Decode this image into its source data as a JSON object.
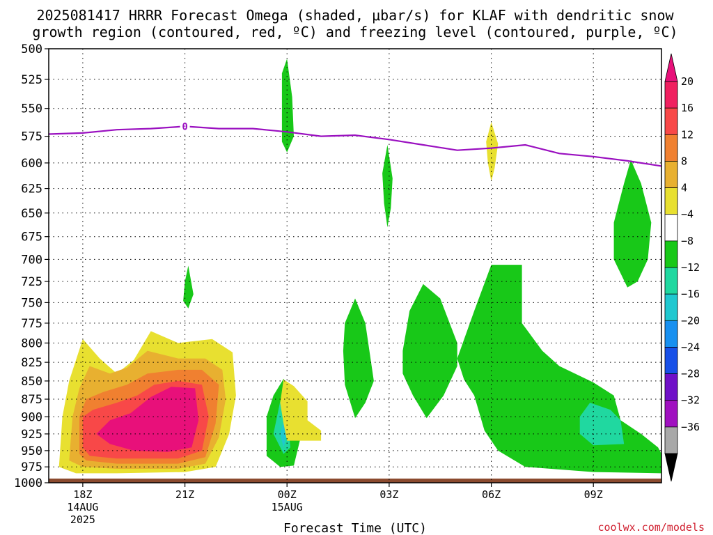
{
  "chart_data": {
    "type": "heatmap",
    "title_line1": "2025081417 HRRR Forecast Omega (shaded, μbar/s) for KLAF with dendritic snow",
    "title_line2": "growth region (contoured, red, ºC) and freezing level (contoured, purple, ºC)",
    "xlabel": "Forecast Time (UTC)",
    "credit": "coolwx.com/models",
    "x_ticks": [
      {
        "label": "18Z",
        "sub1": "14AUG",
        "sub2": "2025",
        "hour": 1
      },
      {
        "label": "21Z",
        "sub1": "",
        "sub2": "",
        "hour": 4
      },
      {
        "label": "00Z",
        "sub1": "15AUG",
        "sub2": "",
        "hour": 7
      },
      {
        "label": "03Z",
        "sub1": "",
        "sub2": "",
        "hour": 10
      },
      {
        "label": "06Z",
        "sub1": "",
        "sub2": "",
        "hour": 13
      },
      {
        "label": "09Z",
        "sub1": "",
        "sub2": "",
        "hour": 16
      }
    ],
    "xlim": [
      0,
      18
    ],
    "y_levels": [
      500,
      525,
      550,
      575,
      600,
      625,
      650,
      675,
      700,
      725,
      750,
      775,
      800,
      825,
      850,
      875,
      900,
      925,
      950,
      975,
      1000
    ],
    "ylim": [
      500,
      1000
    ],
    "y_scale": "log-pressure",
    "grid": true,
    "colorbar": {
      "levels": [
        "20",
        "16",
        "12",
        "8",
        "4",
        "−4",
        "−8",
        "−12",
        "−16",
        "−20",
        "−24",
        "−28",
        "−32",
        "−36"
      ],
      "colors": [
        "#f02060",
        "#f84848",
        "#f08030",
        "#e8b030",
        "#e8e030",
        "#ffffff",
        "#18c818",
        "#20d8a0",
        "#20c8d0",
        "#1890f0",
        "#1850e8",
        "#7010c8",
        "#a010c0",
        "#a8a8a8"
      ],
      "top_color": "#e8107a",
      "bottom_color": "#000000"
    },
    "freezing_level": {
      "label": "0",
      "points": [
        [
          0,
          573
        ],
        [
          1,
          572
        ],
        [
          2,
          569
        ],
        [
          3,
          568
        ],
        [
          4,
          566
        ],
        [
          5,
          568
        ],
        [
          6,
          568
        ],
        [
          7,
          571
        ],
        [
          8,
          575
        ],
        [
          9,
          574
        ],
        [
          10,
          578
        ],
        [
          11,
          583
        ],
        [
          12,
          588
        ],
        [
          13,
          586
        ],
        [
          14,
          583
        ],
        [
          15,
          591
        ],
        [
          16,
          594
        ],
        [
          17,
          598
        ],
        [
          18,
          603
        ]
      ]
    },
    "omega_regions": [
      {
        "value": 6,
        "color": "#e8e030",
        "points": [
          [
            0.3,
            975
          ],
          [
            0.4,
            900
          ],
          [
            0.6,
            850
          ],
          [
            1.0,
            795
          ],
          [
            1.5,
            820
          ],
          [
            2.0,
            840
          ],
          [
            2.5,
            822
          ],
          [
            3.0,
            785
          ],
          [
            3.8,
            800
          ],
          [
            4.8,
            795
          ],
          [
            5.4,
            812
          ],
          [
            5.5,
            870
          ],
          [
            5.3,
            925
          ],
          [
            4.9,
            975
          ],
          [
            4.0,
            983
          ],
          [
            2.0,
            985
          ],
          [
            0.8,
            985
          ]
        ]
      },
      {
        "value": 10,
        "color": "#e8b030",
        "points": [
          [
            0.6,
            965
          ],
          [
            0.7,
            900
          ],
          [
            0.9,
            860
          ],
          [
            1.2,
            830
          ],
          [
            1.8,
            840
          ],
          [
            2.3,
            832
          ],
          [
            2.9,
            810
          ],
          [
            3.8,
            820
          ],
          [
            4.6,
            820
          ],
          [
            5.1,
            835
          ],
          [
            5.2,
            875
          ],
          [
            5.0,
            930
          ],
          [
            4.6,
            970
          ],
          [
            3.8,
            978
          ],
          [
            2.0,
            978
          ],
          [
            1.0,
            975
          ]
        ]
      },
      {
        "value": 14,
        "color": "#f08030",
        "points": [
          [
            0.9,
            955
          ],
          [
            0.9,
            900
          ],
          [
            1.1,
            875
          ],
          [
            1.6,
            865
          ],
          [
            2.3,
            855
          ],
          [
            2.9,
            840
          ],
          [
            3.8,
            835
          ],
          [
            4.5,
            835
          ],
          [
            5.0,
            855
          ],
          [
            4.9,
            910
          ],
          [
            4.6,
            960
          ],
          [
            3.8,
            970
          ],
          [
            2.0,
            970
          ],
          [
            1.1,
            965
          ]
        ]
      },
      {
        "value": 18,
        "color": "#f84848",
        "points": [
          [
            1.0,
            945
          ],
          [
            1.0,
            900
          ],
          [
            1.3,
            890
          ],
          [
            2.0,
            880
          ],
          [
            2.6,
            870
          ],
          [
            3.1,
            855
          ],
          [
            3.8,
            850
          ],
          [
            4.5,
            855
          ],
          [
            4.7,
            900
          ],
          [
            4.5,
            950
          ],
          [
            3.8,
            962
          ],
          [
            2.0,
            962
          ],
          [
            1.2,
            958
          ]
        ]
      },
      {
        "value": 22,
        "color": "#e8107a",
        "points": [
          [
            1.4,
            925
          ],
          [
            1.8,
            905
          ],
          [
            2.4,
            895
          ],
          [
            3.0,
            872
          ],
          [
            3.6,
            858
          ],
          [
            4.3,
            860
          ],
          [
            4.4,
            905
          ],
          [
            4.2,
            945
          ],
          [
            3.5,
            952
          ],
          [
            2.5,
            950
          ],
          [
            1.8,
            940
          ]
        ]
      },
      {
        "value": -6,
        "color": "#18c818",
        "points": [
          [
            6.4,
            958
          ],
          [
            6.4,
            900
          ],
          [
            6.6,
            870
          ],
          [
            6.9,
            847
          ],
          [
            7.2,
            870
          ],
          [
            7.4,
            930
          ],
          [
            7.2,
            973
          ],
          [
            6.8,
            975
          ]
        ]
      },
      {
        "value": -10,
        "color": "#20d8a0",
        "points": [
          [
            6.6,
            925
          ],
          [
            6.8,
            878
          ],
          [
            7.0,
            895
          ],
          [
            7.1,
            945
          ],
          [
            6.9,
            955
          ]
        ]
      },
      {
        "value": -14,
        "color": "#20c8d0",
        "points": [
          [
            6.8,
            925
          ],
          [
            6.9,
            905
          ],
          [
            7.0,
            925
          ],
          [
            6.9,
            945
          ]
        ]
      },
      {
        "value": 6,
        "color": "#e8e030",
        "points": [
          [
            6.8,
            880
          ],
          [
            6.9,
            848
          ],
          [
            7.2,
            857
          ],
          [
            7.6,
            878
          ],
          [
            7.6,
            905
          ],
          [
            8.0,
            920
          ],
          [
            8.0,
            935
          ],
          [
            7.0,
            935
          ],
          [
            6.9,
            910
          ]
        ]
      },
      {
        "value": -6,
        "color": "#18c818",
        "points": [
          [
            6.85,
            520
          ],
          [
            7.0,
            508
          ],
          [
            7.15,
            540
          ],
          [
            7.2,
            575
          ],
          [
            7.0,
            590
          ],
          [
            6.85,
            580
          ]
        ]
      },
      {
        "value": -6,
        "color": "#18c818",
        "points": [
          [
            9.8,
            610
          ],
          [
            9.95,
            583
          ],
          [
            10.1,
            615
          ],
          [
            10.05,
            645
          ],
          [
            9.95,
            665
          ],
          [
            9.85,
            640
          ]
        ]
      },
      {
        "value": 6,
        "color": "#e8e030",
        "points": [
          [
            12.85,
            580
          ],
          [
            13.0,
            562
          ],
          [
            13.2,
            582
          ],
          [
            13.1,
            605
          ],
          [
            13.0,
            618
          ],
          [
            12.9,
            600
          ]
        ]
      },
      {
        "value": -6,
        "color": "#18c818",
        "points": [
          [
            4.0,
            725
          ],
          [
            4.1,
            707
          ],
          [
            4.25,
            740
          ],
          [
            4.1,
            757
          ],
          [
            3.95,
            748
          ]
        ]
      },
      {
        "value": -6,
        "color": "#18c818",
        "points": [
          [
            8.7,
            775
          ],
          [
            9.0,
            745
          ],
          [
            9.3,
            775
          ],
          [
            9.55,
            850
          ],
          [
            9.3,
            880
          ],
          [
            9.0,
            902
          ],
          [
            8.7,
            855
          ],
          [
            8.65,
            810
          ]
        ]
      },
      {
        "value": -6,
        "color": "#18c818",
        "points": [
          [
            10.4,
            810
          ],
          [
            10.6,
            760
          ],
          [
            11.0,
            728
          ],
          [
            11.5,
            745
          ],
          [
            12.0,
            800
          ],
          [
            12.0,
            830
          ],
          [
            11.6,
            870
          ],
          [
            11.1,
            902
          ],
          [
            10.7,
            870
          ],
          [
            10.4,
            840
          ]
        ]
      },
      {
        "value": -6,
        "color": "#18c818",
        "points": [
          [
            12.0,
            820
          ],
          [
            12.5,
            760
          ],
          [
            13.0,
            706
          ],
          [
            13.9,
            706
          ],
          [
            13.9,
            775
          ],
          [
            14.5,
            810
          ],
          [
            15.0,
            830
          ],
          [
            16.0,
            852
          ],
          [
            16.6,
            870
          ],
          [
            16.8,
            905
          ],
          [
            17.4,
            925
          ],
          [
            17.9,
            945
          ],
          [
            18.0,
            955
          ],
          [
            18.0,
            985
          ],
          [
            16.0,
            983
          ],
          [
            14.0,
            975
          ],
          [
            13.2,
            950
          ],
          [
            12.8,
            920
          ],
          [
            12.5,
            870
          ],
          [
            12.2,
            848
          ]
        ]
      },
      {
        "value": -10,
        "color": "#20d8a0",
        "points": [
          [
            15.6,
            900
          ],
          [
            15.9,
            880
          ],
          [
            16.5,
            890
          ],
          [
            16.8,
            905
          ],
          [
            16.9,
            940
          ],
          [
            16.0,
            942
          ],
          [
            15.6,
            925
          ]
        ]
      },
      {
        "value": -6,
        "color": "#18c818",
        "points": [
          [
            16.6,
            660
          ],
          [
            16.9,
            620
          ],
          [
            17.1,
            597
          ],
          [
            17.4,
            620
          ],
          [
            17.7,
            660
          ],
          [
            17.6,
            700
          ],
          [
            17.3,
            725
          ],
          [
            17.0,
            732
          ],
          [
            16.6,
            700
          ]
        ]
      }
    ]
  }
}
